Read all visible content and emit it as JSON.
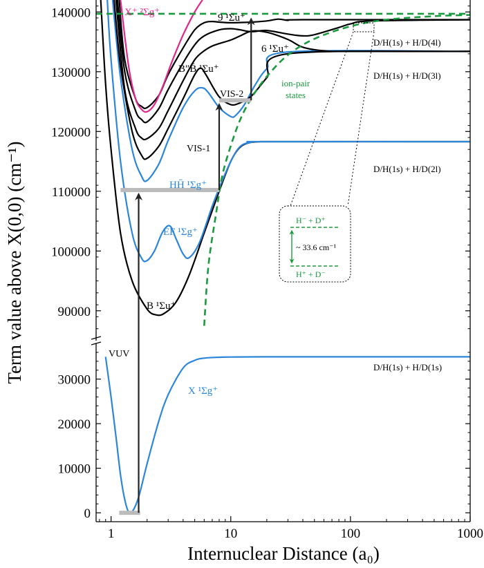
{
  "chart_data": {
    "type": "line",
    "xlabel": "Internuclear Distance (a₀)",
    "ylabel": "Term value above X(0,0) (cm⁻¹)",
    "x_scale": "log",
    "xlim": [
      0.75,
      1000
    ],
    "x_ticks": [
      "1",
      "10",
      "100",
      "1000"
    ],
    "upper_panel": {
      "ylim": [
        85000,
        142000
      ],
      "y_ticks": [
        "90000",
        "100000",
        "110000",
        "120000",
        "130000",
        "140000"
      ]
    },
    "lower_panel": {
      "ylim": [
        -2000,
        38000
      ],
      "y_ticks": [
        "0",
        "10000",
        "20000",
        "30000"
      ]
    },
    "colors": {
      "black": "#000000",
      "blue": "#2b86db",
      "magenta": "#e0288a",
      "green": "#1a9a3e",
      "gray": "#bbbbbb"
    },
    "series": [
      {
        "name": "X ¹Σg⁺",
        "panel": "lower",
        "color": "blue",
        "x": [
          0.9,
          1.0,
          1.1,
          1.2,
          1.3,
          1.4,
          1.5,
          1.7,
          2.0,
          2.5,
          3.0,
          4.0,
          5.0,
          6.0,
          8.0,
          10,
          20,
          100,
          1000
        ],
        "y": [
          35000,
          26000,
          17000,
          8500,
          3000,
          200,
          200,
          3500,
          11000,
          20500,
          26500,
          32500,
          34200,
          34700,
          34900,
          34950,
          35000,
          35000,
          35000
        ]
      },
      {
        "name": "B ¹Σu⁺",
        "panel": "upper",
        "color": "black",
        "x": [
          0.82,
          0.9,
          1.0,
          1.2,
          1.5,
          2.0,
          2.4,
          2.8,
          3.5,
          4.5,
          6.0,
          8.0,
          10,
          12,
          15,
          20,
          30,
          1000
        ],
        "y": [
          142000,
          128000,
          117000,
          103000,
          95000,
          90300,
          89300,
          89600,
          91500,
          96000,
          103000,
          110000,
          115000,
          117400,
          118200,
          118300,
          118300,
          118300
        ]
      },
      {
        "name": "EF ¹Σg⁺",
        "panel": "upper",
        "color": "blue",
        "x": [
          0.93,
          1.0,
          1.2,
          1.5,
          1.8,
          2.0,
          2.3,
          2.7,
          3.1,
          3.5,
          4.0,
          4.5,
          5.5,
          7.0,
          8.0,
          10,
          12,
          15,
          20,
          1000
        ],
        "y": [
          142000,
          132000,
          115000,
          103000,
          98800,
          98400,
          100000,
          103200,
          104200,
          102000,
          99500,
          98900,
          101500,
          107500,
          110500,
          115000,
          117500,
          118200,
          118300,
          118300
        ]
      },
      {
        "name": "HH̄ ¹Σg⁺",
        "panel": "upper",
        "color": "blue",
        "x": [
          1.03,
          1.2,
          1.5,
          1.8,
          2.0,
          2.5,
          3.0,
          4.0,
          5.0,
          5.8,
          6.5,
          8.0,
          10,
          11,
          13,
          16,
          20,
          30,
          1000
        ],
        "y": [
          142000,
          129000,
          117000,
          112500,
          111800,
          114500,
          118500,
          124000,
          126800,
          127300,
          126500,
          124000,
          122500,
          122700,
          124500,
          127800,
          130500,
          133300,
          133400
        ]
      },
      {
        "name": "",
        "panel": "upper",
        "color": "black",
        "x": [
          1.06,
          1.2,
          1.5,
          1.8,
          2.0,
          2.5,
          3.0,
          4.0,
          5.0,
          5.6,
          6.2,
          8.0,
          10,
          12,
          15,
          20,
          30,
          1000
        ],
        "y": [
          142000,
          131000,
          120000,
          116000,
          115500,
          117500,
          120500,
          125500,
          129500,
          130600,
          129500,
          125800,
          124500,
          124800,
          126000,
          129000,
          133000,
          133400
        ]
      },
      {
        "name": "B″B̄ ¹Σu⁺",
        "panel": "upper",
        "color": "black",
        "x": [
          1.1,
          1.3,
          1.6,
          1.8,
          2.0,
          2.5,
          3.0,
          4.0,
          5.0,
          6.0,
          7.0,
          8.0,
          10,
          12,
          15,
          20,
          30,
          40,
          60,
          100,
          1000
        ],
        "y": [
          142000,
          127000,
          120500,
          118900,
          118800,
          120500,
          123500,
          128500,
          132000,
          133500,
          134300,
          134700,
          135300,
          136000,
          136800,
          136600,
          135400,
          134100,
          133500,
          133400,
          133400
        ]
      },
      {
        "name": "6 ¹Σu⁺",
        "panel": "upper",
        "color": "black",
        "x": [
          1.13,
          1.3,
          1.6,
          1.8,
          2.0,
          2.5,
          3.0,
          4.0,
          5.0,
          6.0,
          8.0,
          10,
          12,
          15,
          20,
          30,
          40,
          50,
          80,
          100,
          150,
          1000
        ],
        "y": [
          142000,
          130000,
          123500,
          122000,
          121600,
          123800,
          127000,
          131500,
          134500,
          136000,
          137000,
          137200,
          137000,
          136700,
          136900,
          136300,
          136000,
          136200,
          137400,
          138000,
          138500,
          138700
        ]
      },
      {
        "name": "9 ¹Σu⁺",
        "panel": "upper",
        "color": "black",
        "x": [
          1.17,
          1.3,
          1.6,
          1.8,
          2.0,
          2.5,
          3.0,
          4.0,
          5.0,
          6.0,
          7.0,
          8.0,
          10,
          15,
          20,
          25,
          30,
          40,
          1000
        ],
        "y": [
          142000,
          132000,
          125500,
          124200,
          124000,
          126000,
          129500,
          134000,
          137000,
          138200,
          138400,
          138300,
          138200,
          138300,
          138500,
          138800,
          138600,
          138700,
          138700
        ]
      },
      {
        "name": "X⁺ ²Σg⁺",
        "panel": "upper",
        "color": "magenta",
        "x": [
          1.2,
          1.4,
          1.6,
          1.8,
          2.0,
          2.3,
          2.7,
          3.2,
          4.0,
          5.0,
          5.8
        ],
        "y": [
          142000,
          131000,
          125500,
          123700,
          123300,
          124500,
          127500,
          131500,
          136200,
          140000,
          142000
        ]
      },
      {
        "name": "ion-pair states",
        "panel": "upper",
        "color": "green",
        "dashed": true,
        "x": [
          6.0,
          6.5,
          7.5,
          8.5,
          10,
          12,
          15,
          20,
          30,
          50,
          100,
          200,
          500,
          1000
        ],
        "y": [
          87500,
          97500,
          106000,
          112600,
          117600,
          122000,
          125700,
          129200,
          132800,
          135500,
          137600,
          138700,
          139300,
          139500
        ]
      },
      {
        "name": "",
        "panel": "upper",
        "color": "green",
        "dashed": true,
        "x": [
          0.75,
          1000
        ],
        "y": [
          139700,
          139700
        ]
      }
    ],
    "transitions": [
      {
        "label": "VUV",
        "x": 1.7,
        "y_from": 0,
        "y_to": 110200
      },
      {
        "label": "VIS-1",
        "x": 8.0,
        "y_from": 110200,
        "y_to": 125200
      },
      {
        "label": "VIS-2",
        "x": 14.8,
        "y_from": 125200,
        "y_to": 139500
      }
    ],
    "gray_levels": [
      {
        "panel": "lower",
        "x": [
          1.17,
          1.75
        ],
        "y": 0
      },
      {
        "panel": "upper",
        "x": [
          1.2,
          8.0
        ],
        "y": 110200
      },
      {
        "panel": "upper",
        "x": [
          8.0,
          14.8
        ],
        "y": 125200
      }
    ],
    "state_labels": {
      "x_plus": "X⁺ ²Σg⁺",
      "nine": "9 ¹Σu⁺",
      "six": "6 ¹Σu⁺",
      "bb": "B″B̄ ¹Σu⁺",
      "hh": "HH̄ ¹Σg⁺",
      "ef": "EF ¹Σg⁺",
      "b": "B ¹Σu⁺",
      "x": "X ¹Σg⁺"
    },
    "annotations": {
      "ion_pair_1": "ion-pair",
      "ion_pair_2": "states",
      "vuv": "VUV",
      "vis1": "VIS-1",
      "vis2": "VIS-2",
      "asym_4l": "D/H(1s) + H/D(4l)",
      "asym_3l": "D/H(1s) + H/D(3l)",
      "asym_2l": "D/H(1s) + H/D(2l)",
      "asym_1s": "D/H(1s) + H/D(1s)"
    },
    "inset": {
      "upper_label": "H⁻ + D⁺",
      "lower_label": "H⁺ + D⁻",
      "gap_label": "~ 33.6 cm⁻¹"
    }
  }
}
